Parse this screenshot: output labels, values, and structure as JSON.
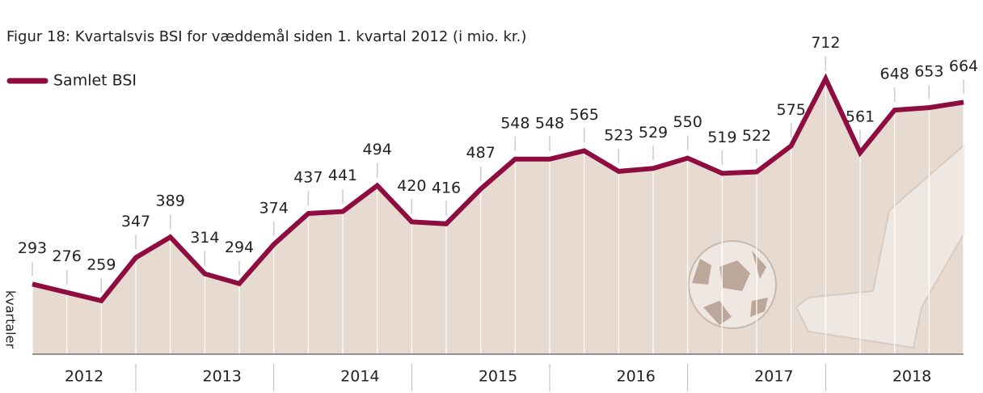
{
  "chart_data": {
    "type": "line",
    "title": "Figur 18: Kvartalsvis BSI for væddemål siden 1. kvartal 2012 (i mio. kr.)",
    "y_label": "kvartaler",
    "year_labels": [
      "2012",
      "2013",
      "2014",
      "2015",
      "2016",
      "2017",
      "2018"
    ],
    "series": [
      {
        "name": "Samlet BSI",
        "color": "#8e0c40",
        "values": [
          293,
          276,
          259,
          347,
          389,
          314,
          294,
          374,
          437,
          441,
          494,
          420,
          416,
          487,
          548,
          548,
          565,
          523,
          529,
          550,
          519,
          522,
          575,
          712,
          561,
          648,
          653,
          664
        ]
      }
    ],
    "area_color": "#e6dad1",
    "ylim": [
      150,
      800
    ]
  }
}
